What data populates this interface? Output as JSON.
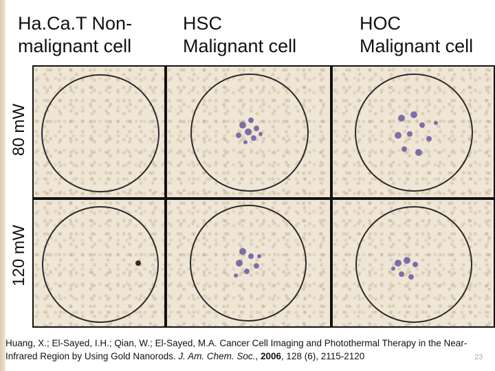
{
  "columns": [
    {
      "title": "Ha.Ca.T Non-\nmalignant cell"
    },
    {
      "title": "HSC\nMalignant cell"
    },
    {
      "title": "HOC\nMalignant cell"
    }
  ],
  "rows": [
    {
      "label": "80 mW"
    },
    {
      "label": "120 mW"
    }
  ],
  "citation": {
    "authors": "Huang, X.; El-Sayed, I.H.; Qian, W.; El-Sayed, M.A. Cancer Cell Imaging and Photothermal Therapy in the Near-Infrared Region by Using Gold Nanorods. ",
    "journal": "J. Am. Chem. Soc.",
    "sep": ", ",
    "year": "2006",
    "rest": ", 128 (6), 2115-2120"
  },
  "slide_number": "23"
}
